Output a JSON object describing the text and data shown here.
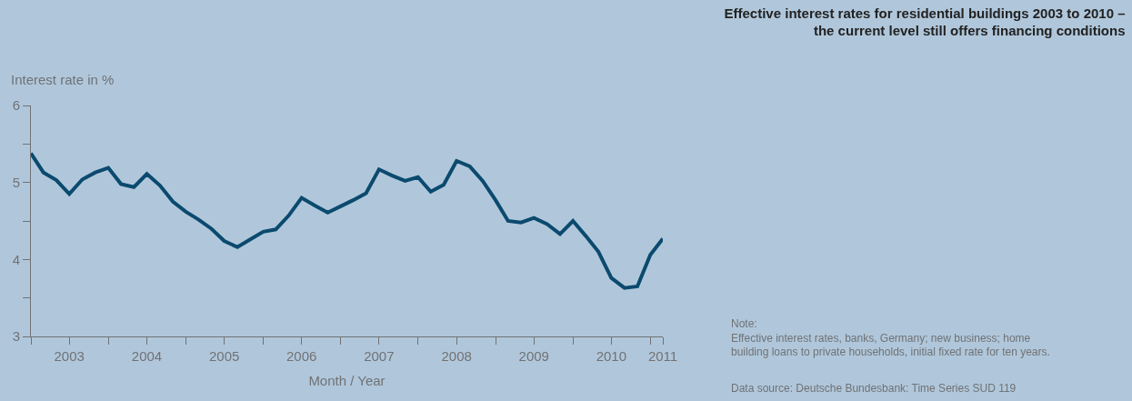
{
  "chart_data": {
    "type": "line",
    "title": "Effective interest rates for residential buildings 2003 to 2010 –\nthe current level still offers financing conditions",
    "xlabel": "Month / Year",
    "ylabel": "Interest rate in %",
    "annotations": [
      "Note:\nEffective interest rates, banks, Germany; new business; home\nbuilding loans to private households, initial fixed rate for ten years.",
      "Data source: Deutsche Bundesbank: Time Series SUD 119"
    ],
    "x": [
      "2003-01",
      "2003-03",
      "2003-05",
      "2003-07",
      "2003-09",
      "2003-11",
      "2004-01",
      "2004-03",
      "2004-05",
      "2004-07",
      "2004-09",
      "2004-11",
      "2005-01",
      "2005-03",
      "2005-05",
      "2005-07",
      "2005-09",
      "2005-11",
      "2006-01",
      "2006-03",
      "2006-05",
      "2006-07",
      "2006-09",
      "2006-11",
      "2007-01",
      "2007-03",
      "2007-05",
      "2007-07",
      "2007-09",
      "2007-11",
      "2008-01",
      "2008-03",
      "2008-05",
      "2008-07",
      "2008-09",
      "2008-11",
      "2009-01",
      "2009-03",
      "2009-05",
      "2009-07",
      "2009-09",
      "2009-11",
      "2010-01",
      "2010-03",
      "2010-05",
      "2010-07",
      "2010-09",
      "2010-11",
      "2011-01",
      "2011-03"
    ],
    "series": [
      {
        "color": "#0b4a6e",
        "values": [
          5.38,
          5.13,
          5.03,
          4.85,
          5.04,
          5.13,
          5.19,
          4.98,
          4.94,
          5.11,
          4.96,
          4.75,
          4.62,
          4.52,
          4.4,
          4.24,
          4.16,
          4.26,
          4.36,
          4.39,
          4.57,
          4.8,
          4.7,
          4.61,
          4.69,
          4.77,
          4.86,
          5.17,
          5.09,
          5.02,
          5.07,
          4.88,
          4.97,
          5.28,
          5.21,
          5.02,
          4.77,
          4.5,
          4.48,
          4.54,
          4.46,
          4.33,
          4.5,
          4.31,
          4.1,
          3.76,
          3.63,
          3.65,
          4.06,
          4.27
        ]
      }
    ],
    "xlim": [
      "2003-01",
      "2011-03"
    ],
    "xticks": [
      {
        "value": "2003-01",
        "label": null
      },
      {
        "value": "2003-07",
        "label": "2003"
      },
      {
        "value": "2004-01",
        "label": null
      },
      {
        "value": "2004-07",
        "label": "2004"
      },
      {
        "value": "2005-01",
        "label": null
      },
      {
        "value": "2005-07",
        "label": "2005"
      },
      {
        "value": "2006-01",
        "label": null
      },
      {
        "value": "2006-07",
        "label": "2006"
      },
      {
        "value": "2007-01",
        "label": null
      },
      {
        "value": "2007-07",
        "label": "2007"
      },
      {
        "value": "2008-01",
        "label": null
      },
      {
        "value": "2008-07",
        "label": "2008"
      },
      {
        "value": "2009-01",
        "label": null
      },
      {
        "value": "2009-07",
        "label": "2009"
      },
      {
        "value": "2010-01",
        "label": null
      },
      {
        "value": "2010-07",
        "label": "2010"
      },
      {
        "value": "2011-01",
        "label": null
      },
      {
        "value": "2011-03",
        "label": "2011"
      }
    ],
    "ylim": [
      3,
      6
    ],
    "yticks": [
      3,
      {
        "value": 3.5,
        "label": null
      },
      4,
      {
        "value": 4.5,
        "label": null
      },
      5,
      {
        "value": 5.5,
        "label": null
      },
      6
    ],
    "grid": false,
    "marker": "none",
    "line_style": "solid"
  }
}
